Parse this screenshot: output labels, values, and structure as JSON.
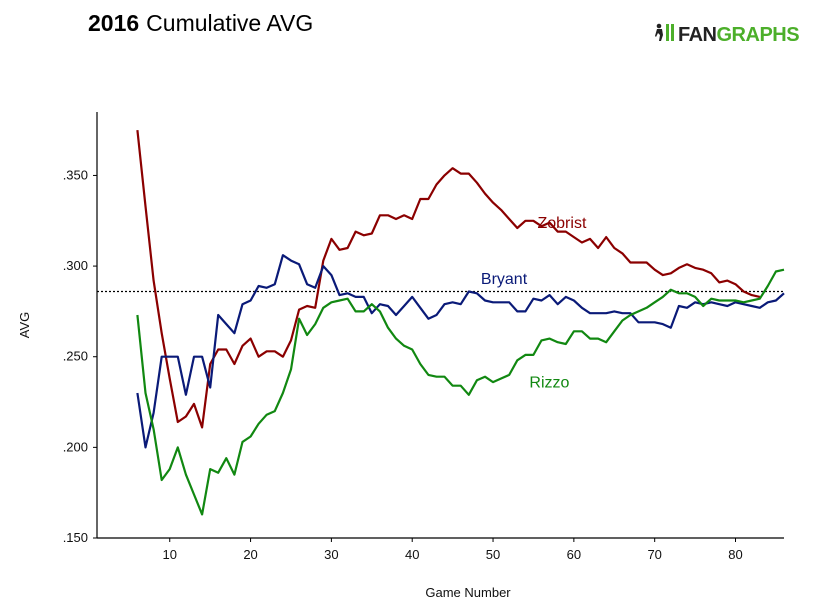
{
  "header": {
    "title_year": "2016",
    "title_text": "Cumulative AVG",
    "logo_text_1": "FAN",
    "logo_text_2": "GRAPHS",
    "logo_icon": "fangraphs-player-icon"
  },
  "colors": {
    "zobrist": "#8b0000",
    "bryant": "#0a1a78",
    "rizzo": "#118811",
    "reference": "#000000",
    "logo_green": "#4caf2a"
  },
  "chart_data": {
    "type": "line",
    "title": "2016 Cumulative AVG",
    "xlabel": "Game Number",
    "ylabel": "AVG",
    "xlim": [
      1,
      86
    ],
    "ylim": [
      0.15,
      0.385
    ],
    "x_ticks": [
      10,
      20,
      30,
      40,
      50,
      60,
      70,
      80
    ],
    "y_ticks": [
      0.15,
      0.2,
      0.25,
      0.3,
      0.35
    ],
    "y_tick_labels": [
      ".150",
      ".200",
      ".250",
      ".300",
      ".350"
    ],
    "grid": false,
    "reference_line": {
      "y": 0.286,
      "style": "dotted"
    },
    "series": [
      {
        "name": "Zobrist",
        "color": "#8b0000",
        "label_at": [
          55.5,
          0.321
        ],
        "points": [
          [
            6,
            0.375
          ],
          [
            7,
            0.333
          ],
          [
            8,
            0.292
          ],
          [
            9,
            0.263
          ],
          [
            10,
            0.238
          ],
          [
            11,
            0.214
          ],
          [
            12,
            0.217
          ],
          [
            13,
            0.224
          ],
          [
            14,
            0.211
          ],
          [
            15,
            0.246
          ],
          [
            16,
            0.254
          ],
          [
            17,
            0.254
          ],
          [
            18,
            0.246
          ],
          [
            19,
            0.256
          ],
          [
            20,
            0.26
          ],
          [
            21,
            0.25
          ],
          [
            22,
            0.253
          ],
          [
            23,
            0.253
          ],
          [
            24,
            0.25
          ],
          [
            25,
            0.259
          ],
          [
            26,
            0.276
          ],
          [
            27,
            0.278
          ],
          [
            28,
            0.277
          ],
          [
            29,
            0.303
          ],
          [
            30,
            0.315
          ],
          [
            31,
            0.309
          ],
          [
            32,
            0.31
          ],
          [
            33,
            0.319
          ],
          [
            34,
            0.317
          ],
          [
            35,
            0.318
          ],
          [
            36,
            0.328
          ],
          [
            37,
            0.328
          ],
          [
            38,
            0.326
          ],
          [
            39,
            0.328
          ],
          [
            40,
            0.326
          ],
          [
            41,
            0.337
          ],
          [
            42,
            0.337
          ],
          [
            43,
            0.345
          ],
          [
            44,
            0.35
          ],
          [
            45,
            0.354
          ],
          [
            46,
            0.351
          ],
          [
            47,
            0.351
          ],
          [
            48,
            0.346
          ],
          [
            49,
            0.34
          ],
          [
            50,
            0.335
          ],
          [
            51,
            0.331
          ],
          [
            52,
            0.326
          ],
          [
            53,
            0.321
          ],
          [
            54,
            0.325
          ],
          [
            55,
            0.325
          ],
          [
            56,
            0.322
          ],
          [
            57,
            0.324
          ],
          [
            58,
            0.319
          ],
          [
            59,
            0.319
          ],
          [
            60,
            0.316
          ],
          [
            61,
            0.313
          ],
          [
            62,
            0.315
          ],
          [
            63,
            0.31
          ],
          [
            64,
            0.316
          ],
          [
            65,
            0.31
          ],
          [
            66,
            0.307
          ],
          [
            67,
            0.302
          ],
          [
            68,
            0.302
          ],
          [
            69,
            0.302
          ],
          [
            70,
            0.298
          ],
          [
            71,
            0.295
          ],
          [
            72,
            0.296
          ],
          [
            73,
            0.299
          ],
          [
            74,
            0.301
          ],
          [
            75,
            0.299
          ],
          [
            76,
            0.298
          ],
          [
            77,
            0.296
          ],
          [
            78,
            0.291
          ],
          [
            79,
            0.292
          ],
          [
            80,
            0.29
          ],
          [
            81,
            0.286
          ],
          [
            82,
            0.284
          ],
          [
            83,
            0.283
          ]
        ]
      },
      {
        "name": "Bryant",
        "color": "#0a1a78",
        "label_at": [
          48.5,
          0.29
        ],
        "points": [
          [
            6,
            0.23
          ],
          [
            7,
            0.2
          ],
          [
            8,
            0.219
          ],
          [
            9,
            0.25
          ],
          [
            10,
            0.25
          ],
          [
            11,
            0.25
          ],
          [
            12,
            0.229
          ],
          [
            13,
            0.25
          ],
          [
            14,
            0.25
          ],
          [
            15,
            0.233
          ],
          [
            16,
            0.273
          ],
          [
            17,
            0.268
          ],
          [
            18,
            0.263
          ],
          [
            19,
            0.279
          ],
          [
            20,
            0.281
          ],
          [
            21,
            0.289
          ],
          [
            22,
            0.288
          ],
          [
            23,
            0.29
          ],
          [
            24,
            0.306
          ],
          [
            25,
            0.303
          ],
          [
            26,
            0.301
          ],
          [
            27,
            0.29
          ],
          [
            28,
            0.288
          ],
          [
            29,
            0.3
          ],
          [
            30,
            0.295
          ],
          [
            31,
            0.284
          ],
          [
            32,
            0.285
          ],
          [
            33,
            0.283
          ],
          [
            34,
            0.283
          ],
          [
            35,
            0.274
          ],
          [
            36,
            0.279
          ],
          [
            37,
            0.278
          ],
          [
            38,
            0.273
          ],
          [
            39,
            0.278
          ],
          [
            40,
            0.283
          ],
          [
            41,
            0.277
          ],
          [
            42,
            0.271
          ],
          [
            43,
            0.273
          ],
          [
            44,
            0.279
          ],
          [
            45,
            0.28
          ],
          [
            46,
            0.279
          ],
          [
            47,
            0.286
          ],
          [
            48,
            0.285
          ],
          [
            49,
            0.281
          ],
          [
            50,
            0.28
          ],
          [
            51,
            0.28
          ],
          [
            52,
            0.28
          ],
          [
            53,
            0.275
          ],
          [
            54,
            0.275
          ],
          [
            55,
            0.282
          ],
          [
            56,
            0.281
          ],
          [
            57,
            0.284
          ],
          [
            58,
            0.279
          ],
          [
            59,
            0.283
          ],
          [
            60,
            0.281
          ],
          [
            61,
            0.277
          ],
          [
            62,
            0.274
          ],
          [
            63,
            0.274
          ],
          [
            64,
            0.274
          ],
          [
            65,
            0.275
          ],
          [
            66,
            0.274
          ],
          [
            67,
            0.274
          ],
          [
            68,
            0.269
          ],
          [
            69,
            0.269
          ],
          [
            70,
            0.269
          ],
          [
            71,
            0.268
          ],
          [
            72,
            0.266
          ],
          [
            73,
            0.278
          ],
          [
            74,
            0.277
          ],
          [
            75,
            0.28
          ],
          [
            76,
            0.279
          ],
          [
            77,
            0.28
          ],
          [
            78,
            0.279
          ],
          [
            79,
            0.278
          ],
          [
            80,
            0.28
          ],
          [
            81,
            0.279
          ],
          [
            82,
            0.278
          ],
          [
            83,
            0.277
          ],
          [
            84,
            0.28
          ],
          [
            85,
            0.281
          ],
          [
            86,
            0.285
          ]
        ]
      },
      {
        "name": "Rizzo",
        "color": "#118811",
        "label_at": [
          54.5,
          0.233
        ],
        "points": [
          [
            6,
            0.273
          ],
          [
            7,
            0.23
          ],
          [
            8,
            0.21
          ],
          [
            9,
            0.182
          ],
          [
            10,
            0.188
          ],
          [
            11,
            0.2
          ],
          [
            12,
            0.185
          ],
          [
            13,
            0.174
          ],
          [
            14,
            0.163
          ],
          [
            15,
            0.188
          ],
          [
            16,
            0.186
          ],
          [
            17,
            0.194
          ],
          [
            18,
            0.185
          ],
          [
            19,
            0.203
          ],
          [
            20,
            0.206
          ],
          [
            21,
            0.213
          ],
          [
            22,
            0.218
          ],
          [
            23,
            0.22
          ],
          [
            24,
            0.23
          ],
          [
            25,
            0.243
          ],
          [
            26,
            0.271
          ],
          [
            27,
            0.262
          ],
          [
            28,
            0.268
          ],
          [
            29,
            0.277
          ],
          [
            30,
            0.28
          ],
          [
            31,
            0.281
          ],
          [
            32,
            0.282
          ],
          [
            33,
            0.275
          ],
          [
            34,
            0.275
          ],
          [
            35,
            0.279
          ],
          [
            36,
            0.275
          ],
          [
            37,
            0.266
          ],
          [
            38,
            0.26
          ],
          [
            39,
            0.256
          ],
          [
            40,
            0.254
          ],
          [
            41,
            0.246
          ],
          [
            42,
            0.24
          ],
          [
            43,
            0.239
          ],
          [
            44,
            0.239
          ],
          [
            45,
            0.234
          ],
          [
            46,
            0.234
          ],
          [
            47,
            0.229
          ],
          [
            48,
            0.237
          ],
          [
            49,
            0.239
          ],
          [
            50,
            0.236
          ],
          [
            51,
            0.238
          ],
          [
            52,
            0.24
          ],
          [
            53,
            0.248
          ],
          [
            54,
            0.251
          ],
          [
            55,
            0.251
          ],
          [
            56,
            0.259
          ],
          [
            57,
            0.26
          ],
          [
            58,
            0.258
          ],
          [
            59,
            0.257
          ],
          [
            60,
            0.264
          ],
          [
            61,
            0.264
          ],
          [
            62,
            0.26
          ],
          [
            63,
            0.26
          ],
          [
            64,
            0.258
          ],
          [
            65,
            0.264
          ],
          [
            66,
            0.27
          ],
          [
            67,
            0.273
          ],
          [
            68,
            0.275
          ],
          [
            69,
            0.277
          ],
          [
            70,
            0.28
          ],
          [
            71,
            0.283
          ],
          [
            72,
            0.287
          ],
          [
            73,
            0.285
          ],
          [
            74,
            0.285
          ],
          [
            75,
            0.283
          ],
          [
            76,
            0.278
          ],
          [
            77,
            0.282
          ],
          [
            78,
            0.281
          ],
          [
            79,
            0.281
          ],
          [
            80,
            0.281
          ],
          [
            81,
            0.28
          ],
          [
            82,
            0.281
          ],
          [
            83,
            0.282
          ],
          [
            84,
            0.289
          ],
          [
            85,
            0.297
          ],
          [
            86,
            0.298
          ]
        ]
      }
    ]
  }
}
